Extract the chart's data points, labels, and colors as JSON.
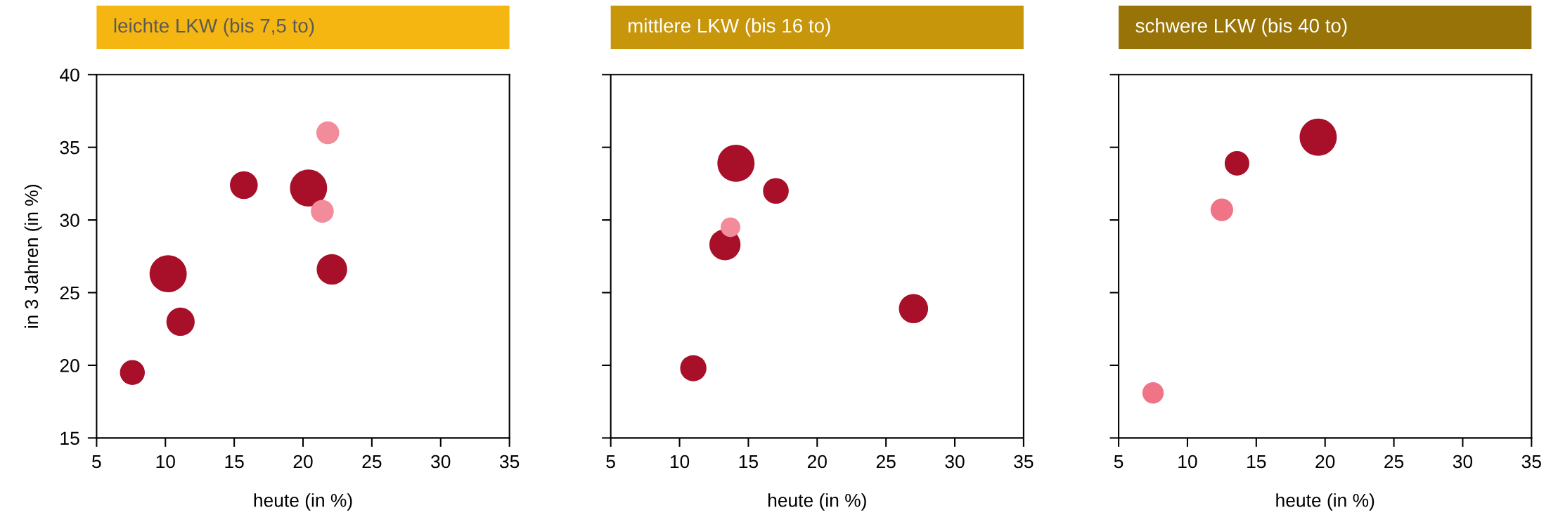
{
  "chart_data": [
    {
      "type": "bubble",
      "title": "leichte LKW (bis 7,5 to)",
      "xlabel": "heute (in %)",
      "ylabel": "in 3 Jahren (in %)",
      "xlim": [
        5,
        35
      ],
      "xticks": [
        5,
        10,
        15,
        20,
        25,
        30,
        35
      ],
      "ylim": [
        15,
        40
      ],
      "yticks": [
        15,
        20,
        25,
        30,
        35,
        40
      ],
      "grid": false,
      "series": [
        {
          "color": "#a8102a",
          "x": [
            7.6,
            10.2,
            11.1,
            15.7,
            20.4,
            22.1
          ],
          "values": [
            19.5,
            26.3,
            23.0,
            32.4,
            32.2,
            26.6
          ],
          "sizes": [
            0.45,
            1.0,
            0.58,
            0.56,
            1.0,
            0.67
          ]
        },
        {
          "color": "#f28b9a",
          "x": [
            21.8,
            21.4
          ],
          "values": [
            36.0,
            30.6
          ],
          "sizes": [
            0.38,
            0.38
          ]
        }
      ]
    },
    {
      "type": "bubble",
      "title": "mittlere LKW (bis 16 to)",
      "xlabel": "heute (in %)",
      "xlim": [
        5,
        35
      ],
      "xticks": [
        5,
        10,
        15,
        20,
        25,
        30,
        35
      ],
      "ylim": [
        15,
        40
      ],
      "yticks": [
        15,
        20,
        25,
        30,
        35,
        40
      ],
      "grid": false,
      "tick_labels": "x",
      "series": [
        {
          "color": "#a8102a",
          "x": [
            14.1,
            17.0,
            13.3,
            27.0,
            11.0
          ],
          "values": [
            33.9,
            32.0,
            28.3,
            23.9,
            19.8
          ],
          "sizes": [
            1.0,
            0.48,
            0.7,
            0.62,
            0.5
          ]
        },
        {
          "color": "#f28b9a",
          "x": [
            13.7
          ],
          "values": [
            29.5
          ],
          "sizes": [
            0.28
          ]
        }
      ]
    },
    {
      "type": "bubble",
      "title": "schwere LKW (bis 40 to)",
      "xlabel": "heute (in %)",
      "xlim": [
        5,
        35
      ],
      "xticks": [
        5,
        10,
        15,
        20,
        25,
        30,
        35
      ],
      "ylim": [
        15,
        40
      ],
      "yticks": [
        15,
        20,
        25,
        30,
        35,
        40
      ],
      "grid": false,
      "tick_labels": "x",
      "series": [
        {
          "color": "#a8102a",
          "x": [
            19.5,
            13.6
          ],
          "values": [
            35.7,
            33.9
          ],
          "sizes": [
            1.0,
            0.44
          ]
        },
        {
          "color": "#ef7485",
          "x": [
            12.5,
            7.5
          ],
          "values": [
            30.7,
            18.1
          ],
          "sizes": [
            0.37,
            0.33
          ]
        }
      ]
    }
  ]
}
